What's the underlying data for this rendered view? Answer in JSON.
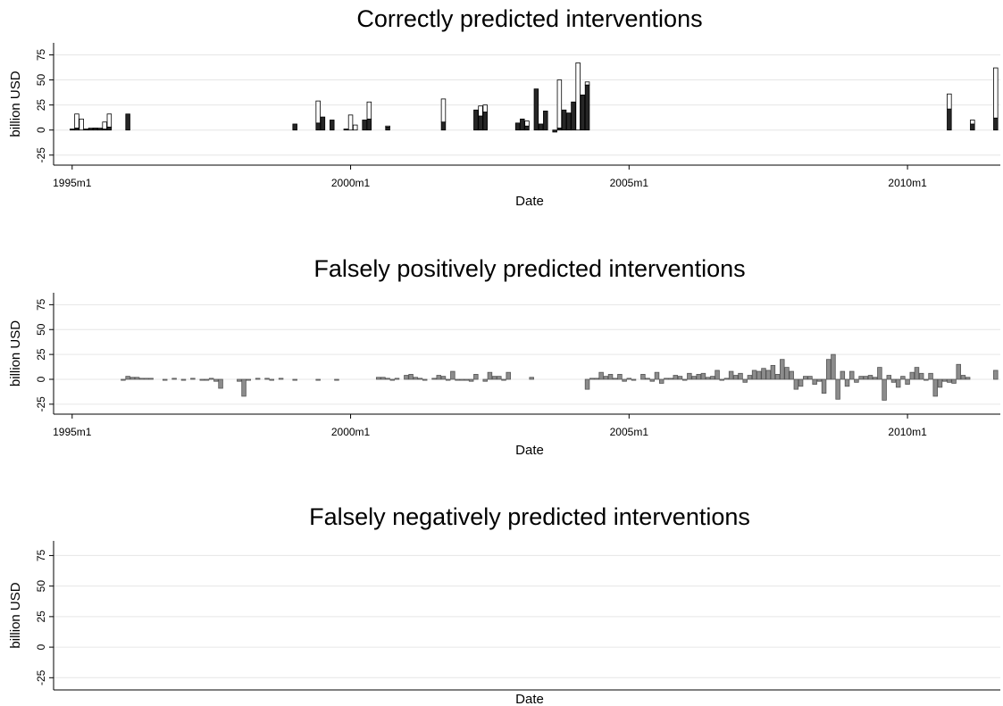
{
  "chart_data": [
    {
      "type": "bar",
      "title": "Correctly predicted interventions",
      "xlabel": "Date",
      "ylabel": "billion USD",
      "ylim": [
        -35,
        87
      ],
      "yticks": [
        -25,
        0,
        25,
        50,
        75
      ],
      "xlim": [
        "1994m9",
        "2011m9"
      ],
      "xticks": [
        "1995m1",
        "2000m1",
        "2005m1",
        "2010m1"
      ],
      "grid": true,
      "stacked": true,
      "x": [
        "1995m1",
        "1995m2",
        "1995m3",
        "1995m4",
        "1995m5",
        "1995m6",
        "1995m7",
        "1995m8",
        "1995m9",
        "1996m1",
        "1999m1",
        "1999m6",
        "1999m7",
        "1999m9",
        "1999m12",
        "2000m1",
        "2000m2",
        "2000m4",
        "2000m5",
        "2000m9",
        "2001m9",
        "2002m4",
        "2002m5",
        "2002m6",
        "2003m1",
        "2003m2",
        "2003m3",
        "2003m5",
        "2003m6",
        "2003m7",
        "2003m9",
        "2003m10",
        "2003m11",
        "2003m12",
        "2004m1",
        "2004m2",
        "2004m3",
        "2004m4",
        "2010m10",
        "2011m3",
        "2011m8"
      ],
      "series": [
        {
          "color": "#262626",
          "values": [
            1,
            2,
            0,
            1,
            1,
            2,
            1,
            1,
            3,
            16,
            6,
            7,
            13,
            10,
            1,
            0,
            0,
            10,
            11,
            3,
            8,
            20,
            14,
            18,
            7,
            11,
            4,
            41,
            6,
            19,
            -2,
            2,
            20,
            17,
            28,
            0,
            35,
            45,
            21,
            6,
            12
          ]
        },
        {
          "color": "#ffffff",
          "values": [
            0,
            14,
            11,
            0,
            1,
            0,
            1,
            7,
            13,
            0,
            0,
            22,
            0,
            0,
            0,
            15,
            5,
            0,
            17,
            1,
            23,
            0,
            10,
            7,
            0,
            0,
            5,
            0,
            0,
            0,
            0,
            48,
            0,
            0,
            0,
            67,
            0,
            3,
            15,
            4,
            50
          ]
        }
      ]
    },
    {
      "type": "bar",
      "title": "Falsely positively predicted interventions",
      "xlabel": "Date",
      "ylabel": "billion USD",
      "ylim": [
        -35,
        87
      ],
      "yticks": [
        -25,
        0,
        25,
        50,
        75
      ],
      "xlim": [
        "1994m9",
        "2011m9"
      ],
      "xticks": [
        "1995m1",
        "2000m1",
        "2005m1",
        "2010m1"
      ],
      "grid": true,
      "stacked": false,
      "x": [
        "1995m1",
        "1995m10",
        "1995m11",
        "1995m12",
        "1996m1",
        "1996m2",
        "1996m3",
        "1996m4",
        "1996m5",
        "1996m6",
        "1996m7",
        "1996m8",
        "1996m9",
        "1996m10",
        "1996m11",
        "1996m12",
        "1997m1",
        "1997m2",
        "1997m3",
        "1997m4",
        "1997m5",
        "1997m6",
        "1997m7",
        "1997m8",
        "1997m9",
        "1997m10",
        "1997m11",
        "1997m12",
        "1998m1",
        "1998m2",
        "1998m3",
        "1998m4",
        "1998m5",
        "1998m6",
        "1998m7",
        "1998m8",
        "1998m9",
        "1998m10",
        "1999m1",
        "1999m2",
        "1999m4",
        "1999m6",
        "1999m8",
        "1999m10",
        "2000m1",
        "2000m4",
        "2000m6",
        "2000m7",
        "2000m8",
        "2000m9",
        "2000m10",
        "2000m11",
        "2000m12",
        "2001m1",
        "2001m2",
        "2001m3",
        "2001m4",
        "2001m5",
        "2001m6",
        "2001m7",
        "2001m8",
        "2001m9",
        "2001m10",
        "2001m11",
        "2001m12",
        "2002m1",
        "2002m2",
        "2002m3",
        "2002m4",
        "2002m6",
        "2002m7",
        "2002m8",
        "2002m9",
        "2002m10",
        "2002m11",
        "2003m4",
        "2004m4",
        "2004m5",
        "2004m6",
        "2004m7",
        "2004m8",
        "2004m9",
        "2004m10",
        "2004m11",
        "2004m12",
        "2005m1",
        "2005m2",
        "2005m3",
        "2005m4",
        "2005m5",
        "2005m6",
        "2005m7",
        "2005m8",
        "2005m9",
        "2005m10",
        "2005m11",
        "2005m12",
        "2006m1",
        "2006m2",
        "2006m3",
        "2006m4",
        "2006m5",
        "2006m6",
        "2006m7",
        "2006m8",
        "2006m9",
        "2006m10",
        "2006m11",
        "2006m12",
        "2007m1",
        "2007m2",
        "2007m3",
        "2007m4",
        "2007m5",
        "2007m6",
        "2007m7",
        "2007m8",
        "2007m9",
        "2007m10",
        "2007m11",
        "2007m12",
        "2008m1",
        "2008m2",
        "2008m3",
        "2008m4",
        "2008m5",
        "2008m6",
        "2008m7",
        "2008m8",
        "2008m9",
        "2008m10",
        "2008m11",
        "2008m12",
        "2009m1",
        "2009m2",
        "2009m3",
        "2009m4",
        "2009m5",
        "2009m6",
        "2009m7",
        "2009m8",
        "2009m9",
        "2009m10",
        "2009m11",
        "2009m12",
        "2010m1",
        "2010m2",
        "2010m3",
        "2010m4",
        "2010m5",
        "2010m6",
        "2010m7",
        "2010m8",
        "2010m9",
        "2010m10",
        "2010m11",
        "2010m12",
        "2011m1",
        "2011m2",
        "2011m8"
      ],
      "series": [
        {
          "color": "#8c8c8c",
          "values": [
            0,
            0,
            0,
            -1,
            3,
            2,
            2,
            1,
            1,
            1,
            0,
            0,
            -1,
            0,
            1,
            0,
            -1,
            0,
            1,
            0,
            -1,
            -1,
            1,
            -2,
            -9,
            0,
            0,
            0,
            -2,
            -17,
            -1,
            0,
            1,
            0,
            1,
            -1,
            0,
            1,
            -1,
            0,
            0,
            -1,
            0,
            -1,
            0,
            0,
            0,
            2,
            2,
            1,
            -1,
            1,
            0,
            4,
            5,
            2,
            1,
            -1,
            0,
            1,
            4,
            3,
            -1,
            8,
            -1,
            -1,
            -1,
            -2,
            5,
            -2,
            7,
            3,
            3,
            -1,
            7,
            2,
            -10,
            1,
            1,
            7,
            3,
            5,
            1,
            5,
            -2,
            1,
            -1,
            0,
            5,
            1,
            -2,
            7,
            -4,
            1,
            1,
            4,
            3,
            -1,
            6,
            3,
            5,
            6,
            2,
            3,
            9,
            -1,
            1,
            8,
            4,
            6,
            -3,
            4,
            9,
            8,
            11,
            9,
            14,
            5,
            20,
            12,
            8,
            -10,
            -7,
            3,
            3,
            -5,
            -2,
            -14,
            20,
            25,
            -20,
            8,
            -7,
            8,
            -3,
            3,
            3,
            4,
            2,
            12,
            -21,
            4,
            -3,
            -8,
            3,
            -5,
            7,
            12,
            6,
            -1,
            6,
            -17,
            -8,
            -2,
            -3,
            -4,
            15,
            4,
            2,
            9
          ]
        }
      ]
    },
    {
      "type": "bar",
      "title": "Falsely negatively predicted interventions",
      "xlabel": "Date",
      "ylabel": "billion USD",
      "ylim": [
        -35,
        87
      ],
      "yticks": [
        -25,
        0,
        25,
        50,
        75
      ],
      "grid": true
    }
  ]
}
